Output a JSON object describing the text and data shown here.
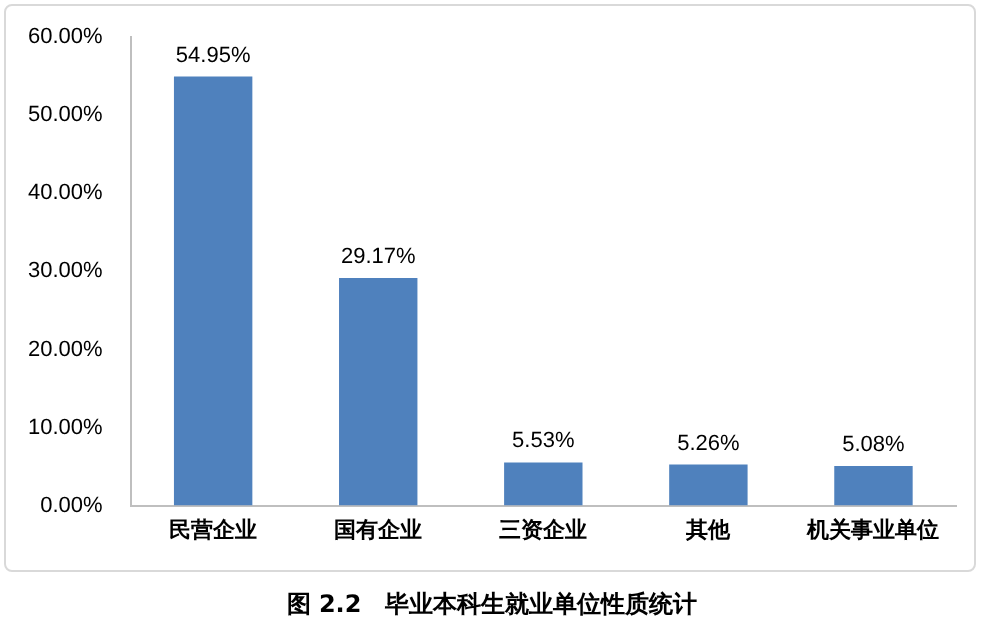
{
  "chart_data": {
    "type": "bar",
    "title": "图 2.2　毕业本科生就业单位性质统计",
    "categories": [
      "民营企业",
      "国有企业",
      "三资企业",
      "其他",
      "机关事业单位"
    ],
    "values": [
      54.95,
      29.17,
      5.53,
      5.26,
      5.08
    ],
    "value_labels": [
      "54.95%",
      "29.17%",
      "5.53%",
      "5.26%",
      "5.08%"
    ],
    "color": "#4f81bd",
    "ylim": [
      0,
      60
    ],
    "yticks": [
      {
        "value": 0,
        "label": "0.00%"
      },
      {
        "value": 10,
        "label": "10.00%"
      },
      {
        "value": 20,
        "label": "20.00%"
      },
      {
        "value": 30,
        "label": "30.00%"
      },
      {
        "value": 40,
        "label": "40.00%"
      },
      {
        "value": 50,
        "label": "50.00%"
      },
      {
        "value": 60,
        "label": "60.00%"
      }
    ],
    "grid": false,
    "legend": false
  }
}
